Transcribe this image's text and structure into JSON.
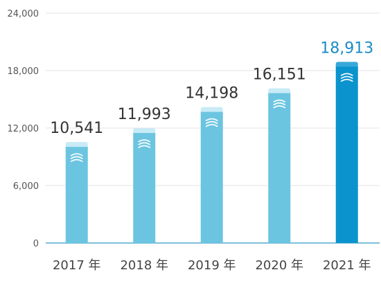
{
  "chart_data": {
    "type": "bar",
    "categories": [
      "2017 年",
      "2018 年",
      "2019 年",
      "2020 年",
      "2021 年"
    ],
    "values": [
      10541,
      11993,
      14198,
      16151,
      18913
    ],
    "value_labels": [
      "10,541",
      "11,993",
      "14,198",
      "16,151",
      "18,913"
    ],
    "highlight_index": 4,
    "yticks": [
      0,
      6000,
      12000,
      18000,
      24000
    ],
    "ytick_labels": [
      "0",
      "6,000",
      "12,000",
      "18,000",
      "24,000"
    ],
    "ylim": [
      0,
      24000
    ],
    "grid": true,
    "title": "",
    "xlabel": "",
    "ylabel": "",
    "colors": {
      "bar": "#6cc5e0",
      "bar_cap": "#c8ebf6",
      "highlight_bar": "#0b93cd",
      "highlight_cap": "#38a8da",
      "grid": "#e3e3e3",
      "axis": "#7cbfd9",
      "bar_icon": "wave-icon"
    }
  }
}
